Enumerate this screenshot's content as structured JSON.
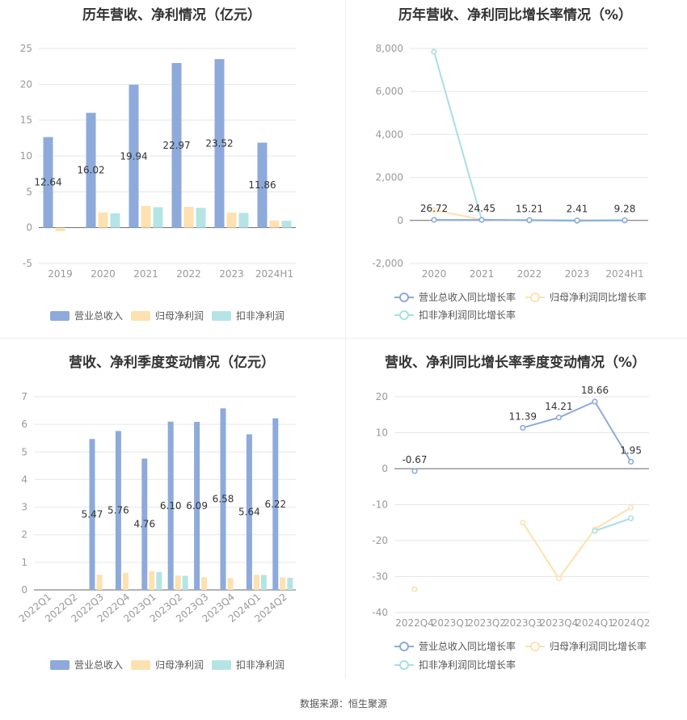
{
  "source": "数据来源：恒生聚源",
  "colors": {
    "revenue": "#8eaadb",
    "netprofit": "#fde1b0",
    "deducted": "#b5e4e4",
    "revenue_line": "#8eaadb",
    "netprofit_line": "#fde1b0",
    "deducted_line": "#a8dfe2",
    "grid": "#e6e6e6",
    "axis_text": "#999999",
    "label_text": "#333333"
  },
  "panels": {
    "annual_amount": {
      "title": "历年营收、净利情况（亿元）",
      "chart_data": {
        "type": "bar",
        "categories": [
          "2019",
          "2020",
          "2021",
          "2022",
          "2023",
          "2024H1"
        ],
        "ylim": [
          -5,
          25
        ],
        "yticks": [
          25,
          20,
          15,
          10,
          5,
          0,
          -5
        ],
        "grid": true,
        "legend_position": "bottom",
        "series": [
          {
            "name": "营业总收入",
            "values": [
              12.64,
              16.02,
              19.94,
              22.97,
              23.52,
              11.86
            ],
            "labels": [
              "12.64",
              "16.02",
              "19.94",
              "22.97",
              "23.52",
              "11.86"
            ]
          },
          {
            "name": "归母净利润",
            "values": [
              -0.5,
              2.1,
              3.0,
              2.9,
              2.1,
              1.0
            ]
          },
          {
            "name": "扣非净利润",
            "values": [
              null,
              2.0,
              2.85,
              2.75,
              2.05,
              0.95
            ]
          }
        ]
      }
    },
    "annual_growth": {
      "title": "历年营收、净利同比增长率情况（%）",
      "chart_data": {
        "type": "line",
        "categories": [
          "2020",
          "2021",
          "2022",
          "2023",
          "2024H1"
        ],
        "ylim": [
          -2000,
          8000
        ],
        "yticks": [
          "8,000",
          "6,000",
          "4,000",
          "2,000",
          "0",
          "-2,000"
        ],
        "ytick_values": [
          8000,
          6000,
          4000,
          2000,
          0,
          -2000
        ],
        "grid": true,
        "legend_position": "bottom",
        "series": [
          {
            "name": "营业总收入同比增长率",
            "values": [
              26.72,
              24.45,
              15.21,
              2.41,
              9.28
            ],
            "labels": [
              "26.72",
              "24.45",
              "15.21",
              "2.41",
              "9.28"
            ]
          },
          {
            "name": "归母净利润同比增长率",
            "values": [
              480,
              40,
              0,
              -30,
              0
            ]
          },
          {
            "name": "扣非净利润同比增长率",
            "values": [
              7850,
              40,
              -5,
              -20,
              -5
            ]
          }
        ]
      }
    },
    "quarterly_amount": {
      "title": "营收、净利季度变动情况（亿元）",
      "chart_data": {
        "type": "bar",
        "categories": [
          "2022Q1",
          "2022Q2",
          "2022Q3",
          "2022Q4",
          "2023Q1",
          "2023Q2",
          "2023Q3",
          "2023Q4",
          "2024Q1",
          "2024Q2"
        ],
        "ylim": [
          0,
          7
        ],
        "yticks": [
          7,
          6,
          5,
          4,
          3,
          2,
          1,
          0
        ],
        "grid": true,
        "legend_position": "bottom",
        "series": [
          {
            "name": "营业总收入",
            "values": [
              null,
              null,
              5.47,
              5.76,
              4.76,
              6.1,
              6.09,
              6.58,
              5.64,
              6.22
            ],
            "labels": [
              "",
              "",
              "5.47",
              "5.76",
              "4.76",
              "6.10",
              "6.09",
              "6.58",
              "5.64",
              "6.22"
            ]
          },
          {
            "name": "归母净利润",
            "values": [
              null,
              null,
              0.55,
              0.62,
              0.67,
              0.52,
              0.46,
              0.43,
              0.55,
              0.45
            ]
          },
          {
            "name": "扣非净利润",
            "values": [
              null,
              null,
              null,
              null,
              0.65,
              0.51,
              null,
              null,
              0.54,
              0.44
            ]
          }
        ]
      }
    },
    "quarterly_growth": {
      "title": "营收、净利同比增长率季度变动情况（%）",
      "chart_data": {
        "type": "line",
        "categories": [
          "2022Q4",
          "2023Q1",
          "2023Q2",
          "2023Q3",
          "2023Q4",
          "2024Q1",
          "2024Q2"
        ],
        "ylim": [
          -40,
          20
        ],
        "yticks": [
          20,
          10,
          0,
          -10,
          -20,
          -30,
          -40
        ],
        "grid": true,
        "legend_position": "bottom",
        "series": [
          {
            "name": "营业总收入同比增长率",
            "values": [
              -0.67,
              null,
              null,
              11.39,
              14.21,
              18.66,
              1.95
            ],
            "labels": [
              "-0.67",
              "",
              "",
              "11.39",
              "14.21",
              "18.66",
              "1.95"
            ]
          },
          {
            "name": "归母净利润同比增长率",
            "values": [
              -33.5,
              null,
              null,
              -15,
              -30.5,
              -16.8,
              -10.8
            ]
          },
          {
            "name": "扣非净利润同比增长率",
            "values": [
              null,
              null,
              null,
              null,
              null,
              -17.3,
              -13.8
            ]
          }
        ]
      }
    }
  }
}
